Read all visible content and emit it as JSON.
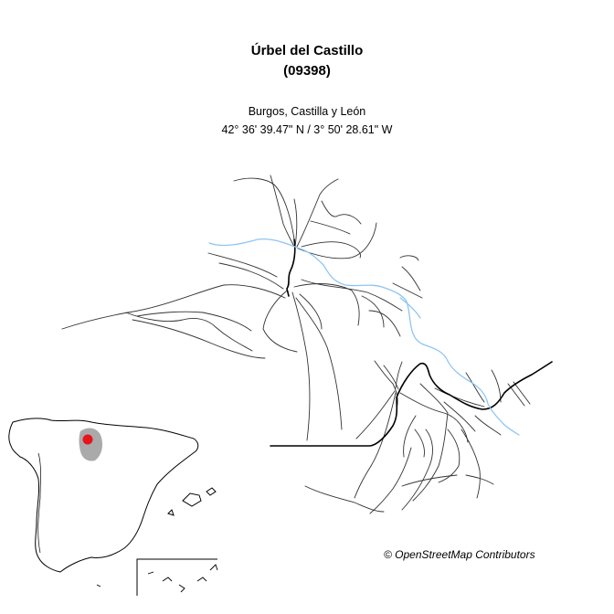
{
  "header": {
    "municipality": "Úrbel del Castillo",
    "code": "(09398)"
  },
  "location": {
    "region": "Burgos, Castilla y León",
    "coordinates": "42° 36' 39.47\" N / 3° 50' 28.61\" W"
  },
  "attribution": "© OpenStreetMap Contributors",
  "colors": {
    "road": "#333333",
    "major_road": "#000000",
    "river": "#8ec5f2",
    "province_highlight": "#aaaaaa",
    "location_marker": "#e8141b"
  }
}
